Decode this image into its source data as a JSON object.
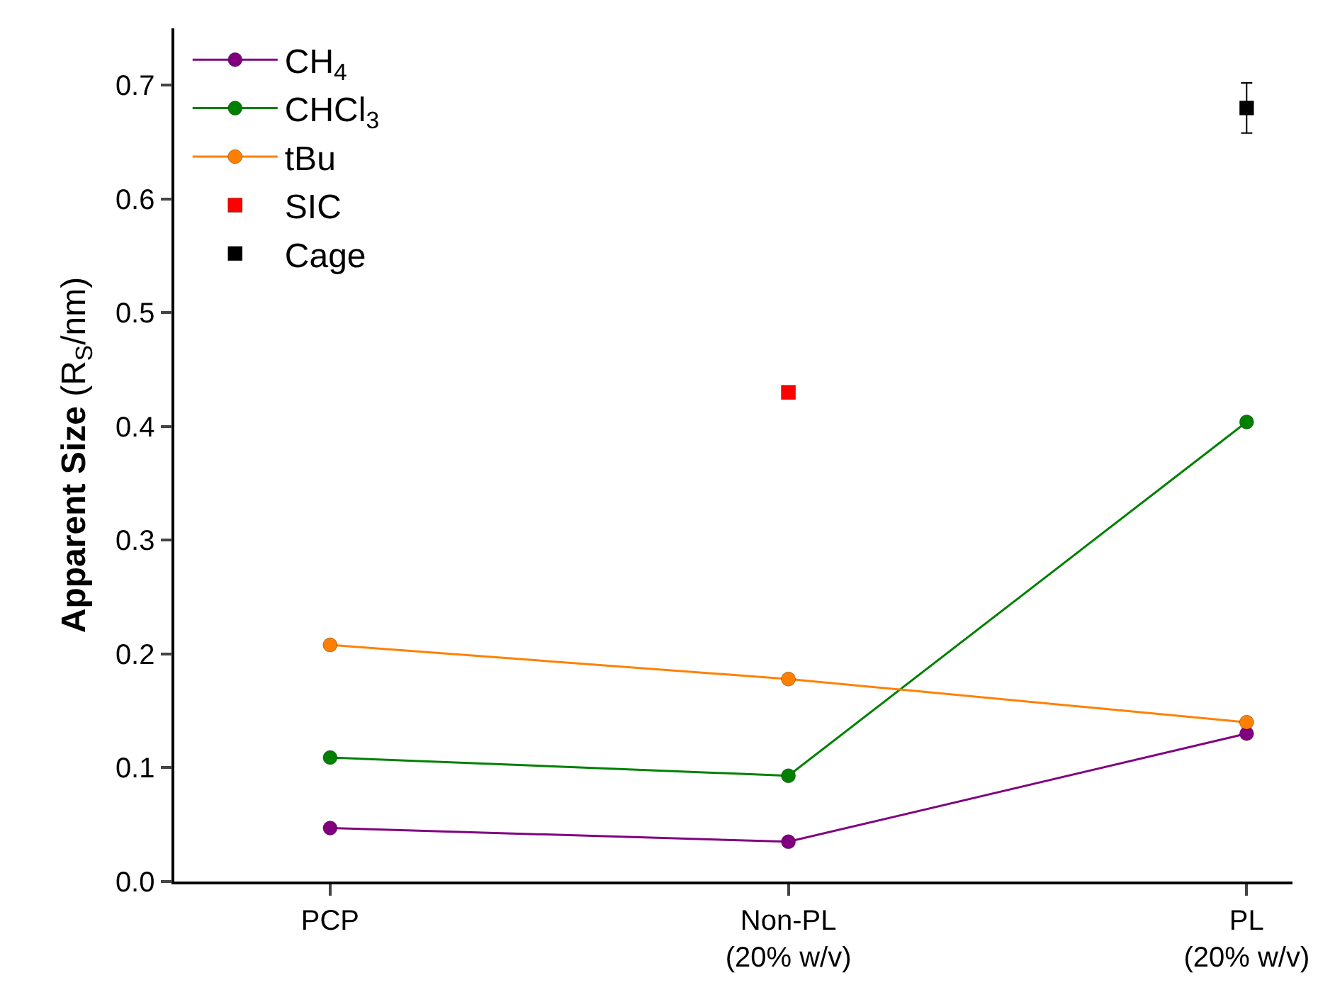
{
  "chart_data": {
    "type": "line",
    "categories": [
      "PCP",
      "Non-PL\n(20% w/v)",
      "PL\n(20% w/v)"
    ],
    "ylabel": "Apparent Size (R$_{S}$/nm)",
    "ylim": [
      0,
      0.75
    ],
    "yticks": [
      {
        "value": 0,
        "label": "0.0"
      },
      0.1,
      0.2,
      0.3,
      0.4,
      0.5,
      0.6,
      0.7
    ],
    "grid": false,
    "legend": "top left",
    "series": [
      {
        "name": "CH$_{4}$",
        "marker": "circle",
        "color": "#800080",
        "values": [
          0.047,
          0.035,
          0.13
        ]
      },
      {
        "name": "CHCl$_{3}$",
        "marker": "circle",
        "color": "#008000",
        "values": [
          0.109,
          0.093,
          0.404
        ]
      },
      {
        "name": "tBu",
        "marker": "circle",
        "color": "#ff8000",
        "values": [
          0.208,
          0.178,
          0.14
        ]
      },
      {
        "name": "SIC",
        "type": "scatter",
        "marker": "square",
        "color": "#ff0000",
        "values": [
          null,
          0.43,
          null
        ]
      },
      {
        "name": "Cage",
        "type": "scatter",
        "marker": "square",
        "color": "#000000",
        "values": [
          null,
          null,
          0.68
        ],
        "errors": [
          null,
          null,
          0.022
        ]
      }
    ]
  }
}
